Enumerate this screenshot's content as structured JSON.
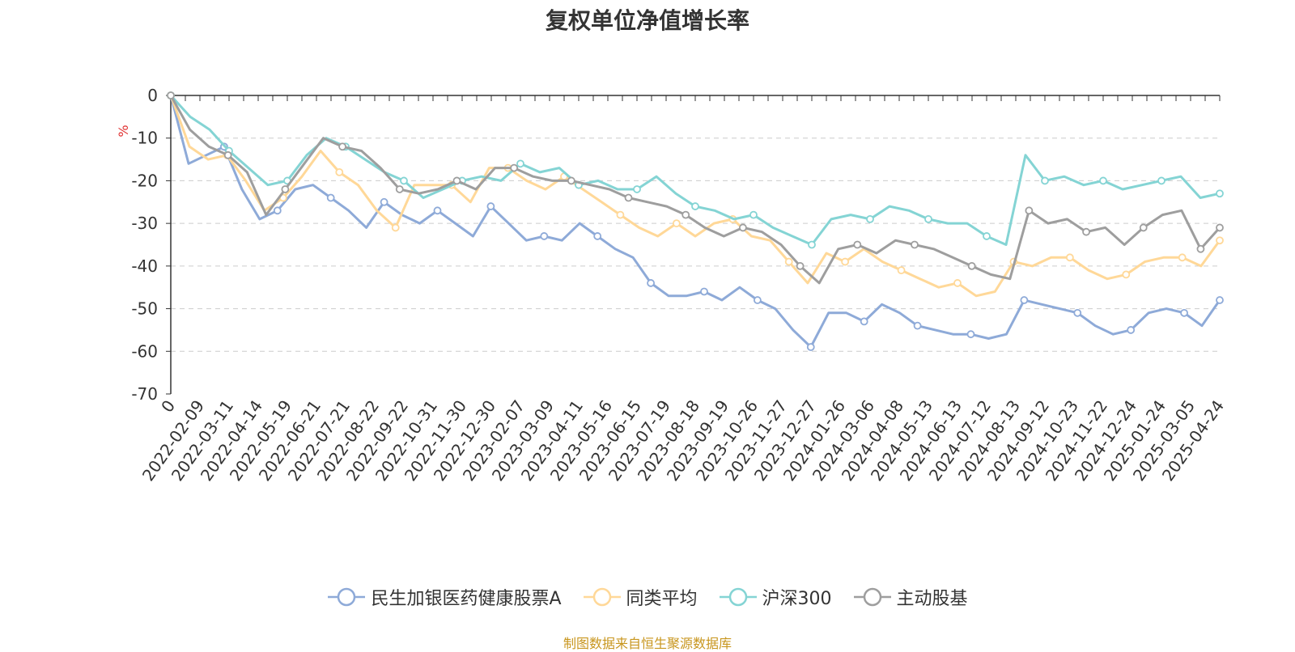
{
  "chart_data": {
    "type": "line",
    "title": "复权单位净值增长率",
    "ylabel": "%",
    "ylim": [
      -70,
      0
    ],
    "yticks": [
      0,
      -10,
      -20,
      -30,
      -40,
      -50,
      -60,
      -70
    ],
    "grid": "horizontal-dashed",
    "legend_position": "bottom",
    "x_tick_labels": [
      "0",
      "2022-02-09",
      "2022-03-11",
      "2022-04-14",
      "2022-05-19",
      "2022-06-21",
      "2022-07-21",
      "2022-08-22",
      "2022-09-22",
      "2022-10-31",
      "2022-11-30",
      "2022-12-30",
      "2023-02-07",
      "2023-03-09",
      "2023-04-11",
      "2023-05-16",
      "2023-06-15",
      "2023-07-19",
      "2023-08-18",
      "2023-09-19",
      "2023-10-26",
      "2023-11-27",
      "2023-12-27",
      "2024-01-26",
      "2024-03-06",
      "2024-04-08",
      "2024-05-13",
      "2024-06-13",
      "2024-07-12",
      "2024-08-13",
      "2024-09-12",
      "2024-10-23",
      "2024-11-22",
      "2024-12-24",
      "2025-01-24",
      "2025-03-05",
      "2025-04-24"
    ],
    "series": [
      {
        "name": "民生加银医药健康股票A",
        "color": "#8eaad8",
        "values": [
          0,
          -16,
          -14,
          -12,
          -22,
          -29,
          -27,
          -22,
          -21,
          -24,
          -27,
          -31,
          -25,
          -28,
          -30,
          -27,
          -30,
          -33,
          -26,
          -30,
          -34,
          -33,
          -34,
          -30,
          -33,
          -36,
          -38,
          -44,
          -47,
          -47,
          -46,
          -48,
          -45,
          -48,
          -50,
          -55,
          -59,
          -51,
          -51,
          -53,
          -49,
          -51,
          -54,
          -55,
          -56,
          -56,
          -57,
          -56,
          -48,
          -49,
          -50,
          -51,
          -54,
          -56,
          -55,
          -51,
          -50,
          -51,
          -54,
          -48
        ]
      },
      {
        "name": "同类平均",
        "color": "#ffd898",
        "values": [
          0,
          -12,
          -15,
          -14,
          -20,
          -27,
          -24,
          -19,
          -13,
          -18,
          -21,
          -27,
          -31,
          -21,
          -21,
          -21,
          -25,
          -17,
          -17,
          -20,
          -22,
          -19,
          -22,
          -25,
          -28,
          -31,
          -33,
          -30,
          -33,
          -30,
          -29,
          -33,
          -34,
          -39,
          -44,
          -37,
          -39,
          -36,
          -39,
          -41,
          -43,
          -45,
          -44,
          -47,
          -46,
          -39,
          -40,
          -38,
          -38,
          -41,
          -43,
          -42,
          -39,
          -38,
          -38,
          -40,
          -34
        ]
      },
      {
        "name": "沪深300",
        "color": "#84d4d4",
        "values": [
          0,
          -5,
          -8,
          -13,
          -17,
          -21,
          -20,
          -14,
          -10,
          -12,
          -15,
          -18,
          -20,
          -24,
          -22,
          -20,
          -19,
          -20,
          -16,
          -18,
          -17,
          -21,
          -20,
          -22,
          -22,
          -19,
          -23,
          -26,
          -27,
          -29,
          -28,
          -31,
          -33,
          -35,
          -29,
          -28,
          -29,
          -26,
          -27,
          -29,
          -30,
          -30,
          -33,
          -35,
          -14,
          -20,
          -19,
          -21,
          -20,
          -22,
          -21,
          -20,
          -19,
          -24,
          -23
        ]
      },
      {
        "name": "主动股基",
        "color": "#9e9e9e",
        "values": [
          0,
          -8,
          -12,
          -14,
          -18,
          -28,
          -22,
          -16,
          -10,
          -12,
          -13,
          -17,
          -22,
          -23,
          -22,
          -20,
          -22,
          -17,
          -17,
          -19,
          -20,
          -20,
          -21,
          -22,
          -24,
          -25,
          -26,
          -28,
          -31,
          -33,
          -31,
          -32,
          -35,
          -40,
          -44,
          -36,
          -35,
          -37,
          -34,
          -35,
          -36,
          -38,
          -40,
          -42,
          -43,
          -27,
          -30,
          -29,
          -32,
          -31,
          -35,
          -31,
          -28,
          -27,
          -36,
          -31
        ]
      }
    ]
  },
  "source_note": "制图数据来自恒生聚源数据库"
}
